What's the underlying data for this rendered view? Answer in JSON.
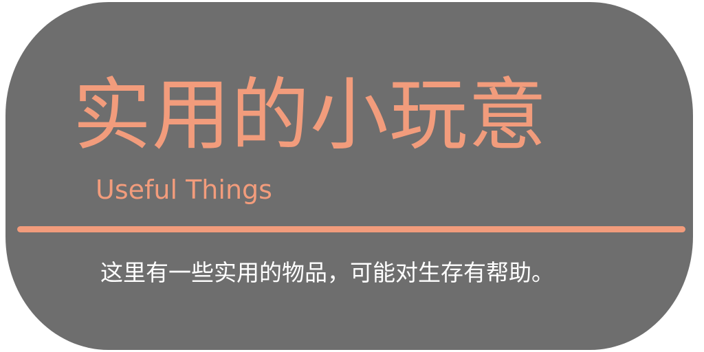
{
  "banner": {
    "title": "实用的小玩意",
    "subtitle": "Useful Things",
    "description": "这里有一些实用的物品，可能对生存有帮助。"
  },
  "colors": {
    "background": "#6e6e6e",
    "accent": "#f29c7c",
    "text": "#ffffff"
  }
}
